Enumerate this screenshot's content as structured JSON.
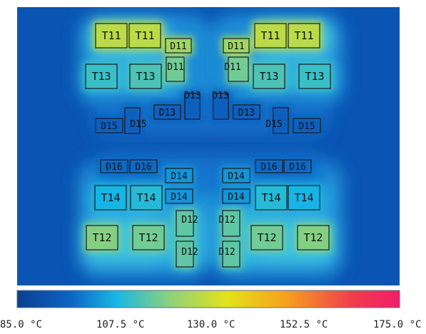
{
  "colors": {
    "background": "#0a55b3",
    "scale_stops": [
      "#0a3f8f",
      "#0d64c4",
      "#19b7e6",
      "#8ed27a",
      "#e4e21a",
      "#f6a21e",
      "#f03c4c",
      "#ef1e6a"
    ]
  },
  "scale": {
    "min": 85.0,
    "max": 175.0,
    "unit": "°C",
    "tick_labels": [
      "85.0 °C",
      "107.5 °C",
      "130.0 °C",
      "152.5 °C",
      "175.0 °C"
    ]
  },
  "components": [
    {
      "label": "T11",
      "temp": 128
    },
    {
      "label": "T11",
      "temp": 128
    },
    {
      "label": "D11",
      "temp": 124
    },
    {
      "label": "D11",
      "temp": 124
    },
    {
      "label": "T11",
      "temp": 128
    },
    {
      "label": "T11",
      "temp": 128
    },
    {
      "label": "T13",
      "temp": 112
    },
    {
      "label": "T13",
      "temp": 114
    },
    {
      "label": "D11",
      "temp": 118
    },
    {
      "label": "D11",
      "temp": 118
    },
    {
      "label": "T13",
      "temp": 114
    },
    {
      "label": "T13",
      "temp": 112
    },
    {
      "label": "D13",
      "temp": 96
    },
    {
      "label": "D13",
      "temp": 96
    },
    {
      "label": "D13",
      "temp": 96
    },
    {
      "label": "D13",
      "temp": 96
    },
    {
      "label": "D15",
      "temp": 96
    },
    {
      "label": "D15",
      "temp": 96
    },
    {
      "label": "D15",
      "temp": 96
    },
    {
      "label": "D15",
      "temp": 96
    },
    {
      "label": "D16",
      "temp": 98
    },
    {
      "label": "D16",
      "temp": 98
    },
    {
      "label": "D16",
      "temp": 98
    },
    {
      "label": "D16",
      "temp": 98
    },
    {
      "label": "D14",
      "temp": 104
    },
    {
      "label": "D14",
      "temp": 104
    },
    {
      "label": "D14",
      "temp": 104
    },
    {
      "label": "D14",
      "temp": 104
    },
    {
      "label": "T14",
      "temp": 108
    },
    {
      "label": "T14",
      "temp": 110
    },
    {
      "label": "T14",
      "temp": 110
    },
    {
      "label": "T14",
      "temp": 108
    },
    {
      "label": "T12",
      "temp": 120
    },
    {
      "label": "T12",
      "temp": 118
    },
    {
      "label": "D12",
      "temp": 116
    },
    {
      "label": "D12",
      "temp": 116
    },
    {
      "label": "T12",
      "temp": 118
    },
    {
      "label": "T12",
      "temp": 120
    },
    {
      "label": "D12",
      "temp": 116
    },
    {
      "label": "D12",
      "temp": 116
    }
  ]
}
